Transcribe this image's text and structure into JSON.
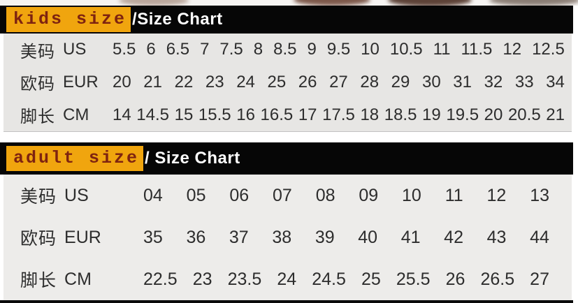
{
  "chart_data": [
    {
      "type": "table",
      "id": "kids",
      "title_highlight": "kids size",
      "title_rest": "/Size Chart",
      "rows": [
        {
          "label_cn": "美码",
          "label_code": "US",
          "values": [
            "5.5",
            "6",
            "6.5",
            "7",
            "7.5",
            "8",
            "8.5",
            "9",
            "9.5",
            "10",
            "10.5",
            "11",
            "11.5",
            "12",
            "12.5"
          ]
        },
        {
          "label_cn": "欧码",
          "label_code": "EUR",
          "values": [
            "20",
            "21",
            "22",
            "23",
            "24",
            "25",
            "26",
            "27",
            "28",
            "29",
            "30",
            "31",
            "32",
            "33",
            "34"
          ]
        },
        {
          "label_cn": "脚长",
          "label_code": "CM",
          "values": [
            "14",
            "14.5",
            "15",
            "15.5",
            "16",
            "16.5",
            "17",
            "17.5",
            "18",
            "18.5",
            "19",
            "19.5",
            "20",
            "20.5",
            "21"
          ]
        }
      ]
    },
    {
      "type": "table",
      "id": "adult",
      "title_highlight": "adult size",
      "title_rest": "/ Size Chart",
      "rows": [
        {
          "label_cn": "美码",
          "label_code": "US",
          "values": [
            "04",
            "05",
            "06",
            "07",
            "08",
            "09",
            "10",
            "11",
            "12",
            "13"
          ]
        },
        {
          "label_cn": "欧码",
          "label_code": "EUR",
          "values": [
            "35",
            "36",
            "37",
            "38",
            "39",
            "40",
            "41",
            "42",
            "43",
            "44"
          ]
        },
        {
          "label_cn": "脚长",
          "label_code": "CM",
          "values": [
            "22.5",
            "23",
            "23.5",
            "24",
            "24.5",
            "25",
            "25.5",
            "26",
            "26.5",
            "27"
          ]
        }
      ]
    }
  ],
  "colors": {
    "header_bg": "#060606",
    "header_text": "#ffffff",
    "highlight_bg": "#F0A50E",
    "highlight_text": "#7E2310",
    "table_text": "#2d2d2d",
    "kids_table_bg": "#e7e6e4",
    "adult_table_bg": "#edecea"
  }
}
